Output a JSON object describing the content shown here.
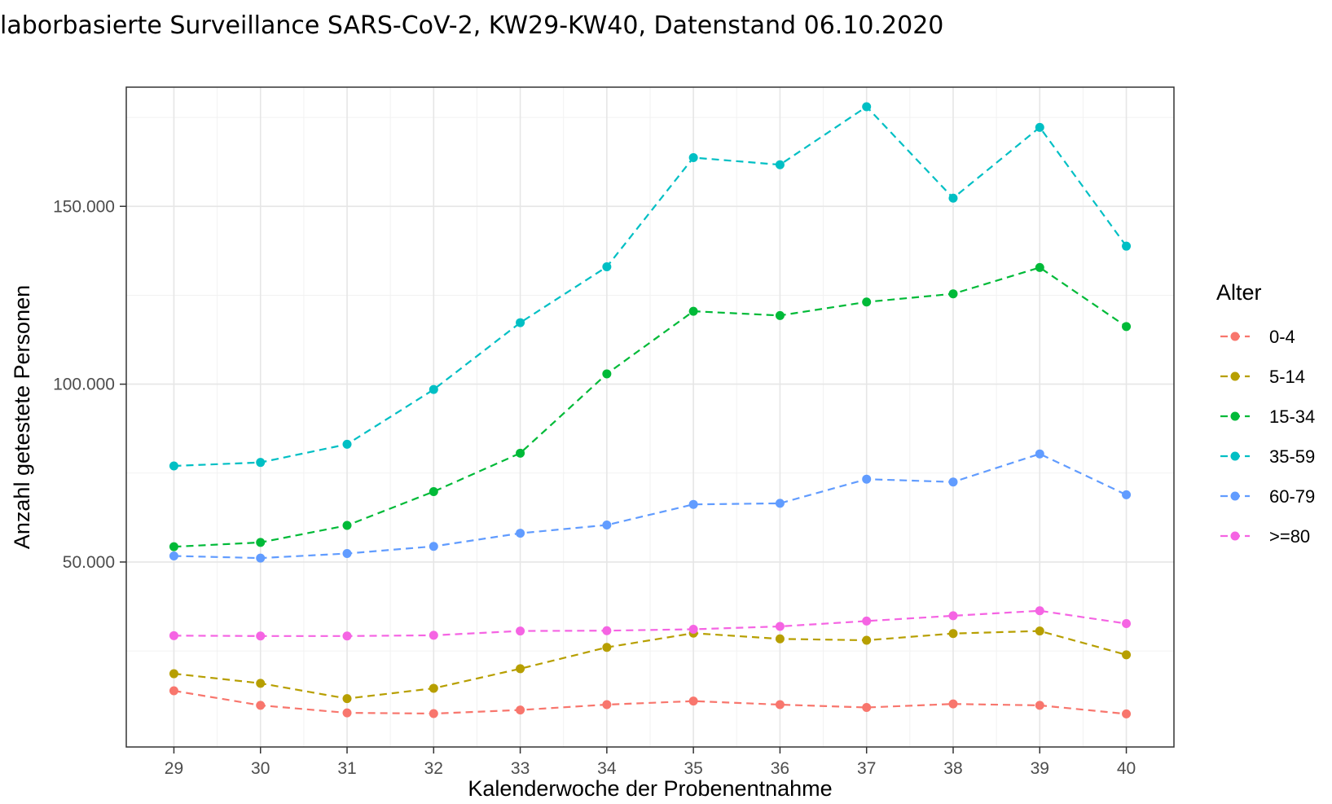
{
  "title": "laborbasierte Surveillance SARS-CoV-2, KW29-KW40, Datenstand 06.10.2020",
  "chart_data": {
    "type": "line",
    "xlabel": "Kalenderwoche der Probenentnahme",
    "ylabel": "Anzahl getestete Personen",
    "x": [
      29,
      30,
      31,
      32,
      33,
      34,
      35,
      36,
      37,
      38,
      39,
      40
    ],
    "xlim": [
      28.45,
      40.55
    ],
    "ylim": [
      -2000,
      183500
    ],
    "yticks": [
      50000,
      100000,
      150000
    ],
    "ytick_labels": [
      "50.000",
      "100.000",
      "150.000"
    ],
    "legend_title": "Alter",
    "legend_position": "right",
    "grid": true,
    "line_style": "dashed",
    "series": [
      {
        "name": "0-4",
        "color": "#F8766D",
        "values": [
          13800,
          9700,
          7600,
          7400,
          8400,
          9900,
          10900,
          9900,
          9100,
          10100,
          9700,
          7300
        ]
      },
      {
        "name": "5-14",
        "color": "#B79F00",
        "values": [
          18600,
          15900,
          11600,
          14500,
          20000,
          26000,
          30000,
          28400,
          28000,
          29900,
          30600,
          23900
        ]
      },
      {
        "name": "15-34",
        "color": "#00BA38",
        "values": [
          54300,
          55500,
          60300,
          69800,
          80600,
          102900,
          120500,
          119300,
          123100,
          125400,
          132800,
          116200
        ]
      },
      {
        "name": "35-59",
        "color": "#00BFC4",
        "values": [
          77000,
          78000,
          83100,
          98500,
          117300,
          133000,
          163700,
          161700,
          178000,
          152300,
          172200,
          138800
        ]
      },
      {
        "name": "60-79",
        "color": "#619CFF",
        "values": [
          51700,
          51100,
          52400,
          54400,
          58100,
          60400,
          66200,
          66500,
          73300,
          72500,
          80400,
          68900
        ]
      },
      {
        "name": ">=80",
        "color": "#F564E3",
        "values": [
          29300,
          29200,
          29200,
          29400,
          30600,
          30700,
          31100,
          31900,
          33400,
          34900,
          36300,
          32700
        ]
      }
    ]
  }
}
